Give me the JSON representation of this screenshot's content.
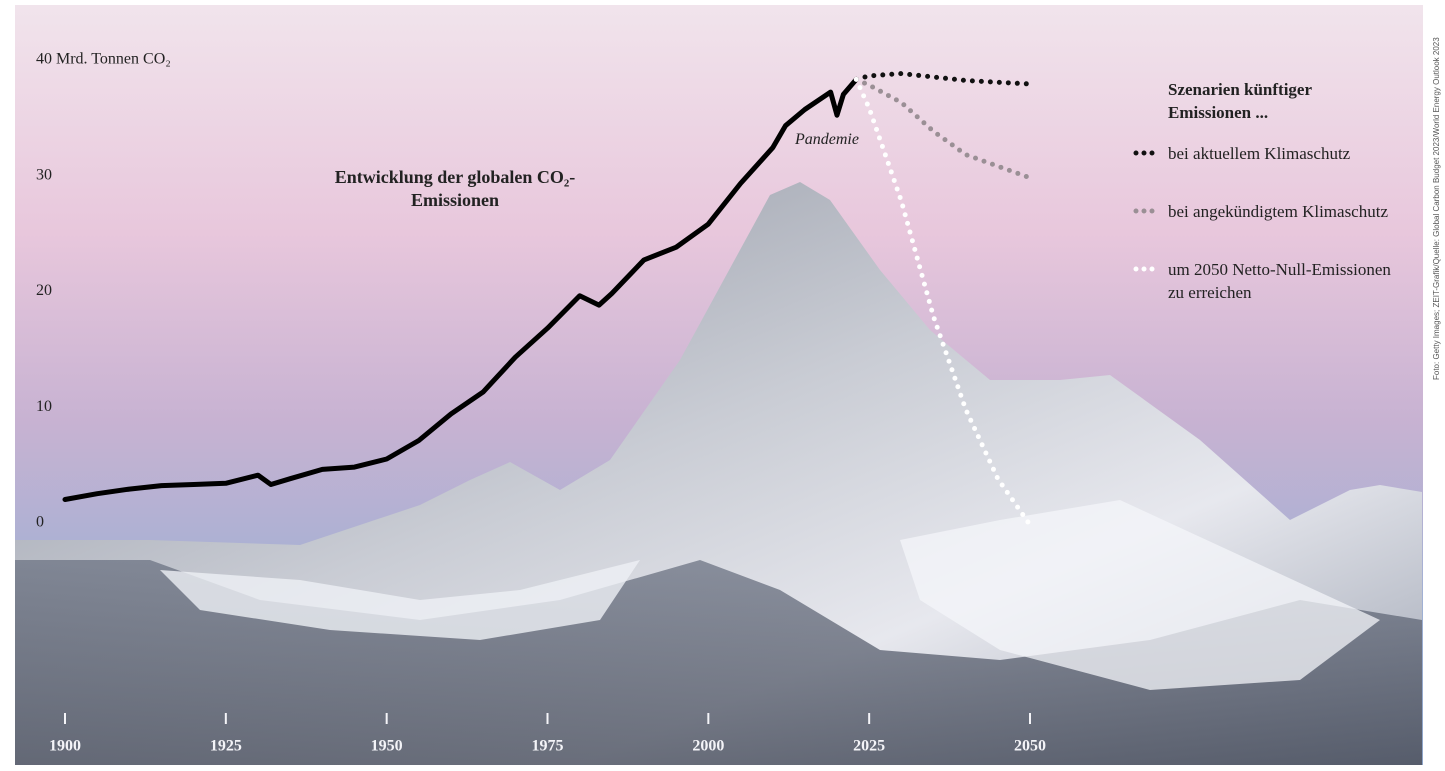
{
  "chart_data": {
    "type": "line",
    "annotations": {
      "event": "Pandemie"
    },
    "legend_title": "Szenarien künftiger Emissionen ...",
    "credit": "Foto: Getty Images; ZEIT-Grafik/Quelle: Global Carbon Budget 2023/World Energy Outlook 2023",
    "xlim": [
      1900,
      2050
    ],
    "xticks": [
      1900,
      1925,
      1950,
      1975,
      2000,
      2025,
      2050
    ],
    "ylim": [
      0,
      40
    ],
    "yticks": [
      0,
      10,
      20,
      30,
      {
        "value": 40,
        "label": "40 Mrd. Tonnen CO₂"
      }
    ],
    "series": [
      {
        "name": "Entwicklung der globalen CO₂-Emissionen",
        "color": "#000000",
        "style": "solid",
        "x": [
          1900,
          1905,
          1910,
          1915,
          1920,
          1925,
          1930,
          1932,
          1935,
          1940,
          1945,
          1950,
          1955,
          1960,
          1965,
          1970,
          1975,
          1980,
          1983,
          1985,
          1990,
          1995,
          2000,
          2005,
          2010,
          2012,
          2015,
          2019,
          2020,
          2021,
          2023
        ],
        "values": [
          2.2,
          2.7,
          3.1,
          3.4,
          3.5,
          3.6,
          4.3,
          3.5,
          4.0,
          4.8,
          5.0,
          5.7,
          7.3,
          9.6,
          11.5,
          14.5,
          17.0,
          19.8,
          19.0,
          20.0,
          22.9,
          24.0,
          26.0,
          29.5,
          32.6,
          34.5,
          35.9,
          37.4,
          35.4,
          37.2,
          38.5
        ]
      },
      {
        "name": "bei aktuellem Klimaschutz",
        "color": "#111111",
        "style": "dotted",
        "x": [
          2023,
          2025,
          2030,
          2035,
          2040,
          2050
        ],
        "values": [
          38.5,
          38.8,
          39.0,
          38.7,
          38.4,
          38.1
        ]
      },
      {
        "name": "bei angekündigtem Klimaschutz",
        "color": "#9a8f95",
        "style": "dotted",
        "x": [
          2023,
          2025,
          2030,
          2035,
          2040,
          2045,
          2050
        ],
        "values": [
          38.5,
          38.0,
          36.5,
          34.0,
          32.0,
          31.0,
          30.0
        ]
      },
      {
        "name": "um 2050 Netto-Null-Emissionen zu erreichen",
        "color": "#ffffff",
        "style": "dotted",
        "x": [
          2023,
          2025,
          2030,
          2035,
          2040,
          2045,
          2050
        ],
        "values": [
          38.5,
          36.0,
          28.0,
          18.0,
          10.0,
          4.0,
          0.0
        ]
      }
    ]
  }
}
